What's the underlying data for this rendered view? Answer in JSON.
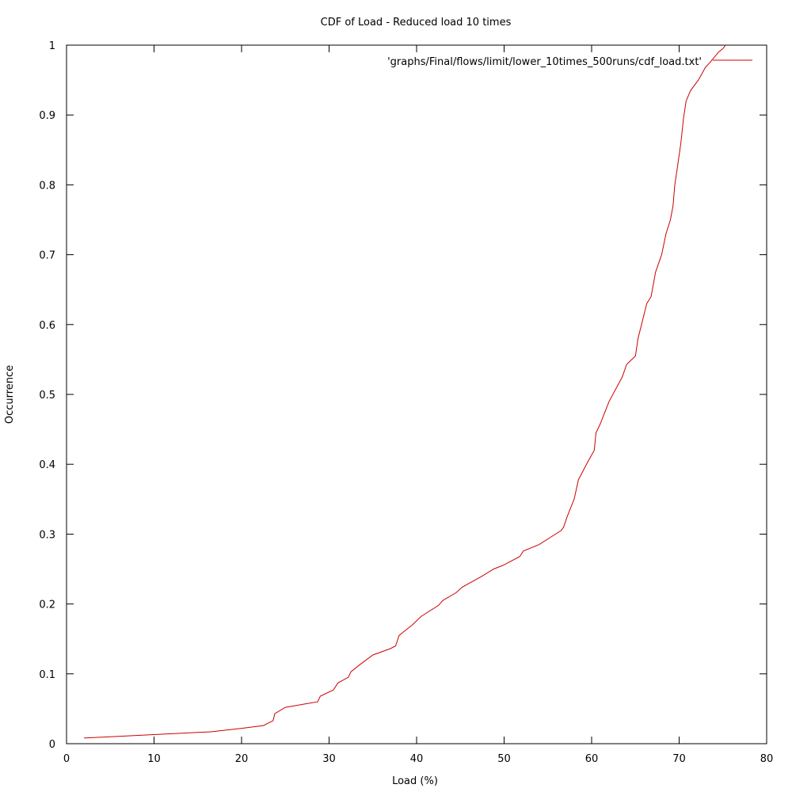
{
  "chart_data": {
    "type": "line",
    "title": "CDF of Load - Reduced load 10 times",
    "xlabel": "Load (%)",
    "ylabel": "Occurrence",
    "xlim": [
      0,
      80
    ],
    "ylim": [
      0,
      1
    ],
    "xticks": [
      "0",
      "10",
      "20",
      "30",
      "40",
      "50",
      "60",
      "70",
      "80"
    ],
    "yticks": [
      "0",
      "0.1",
      "0.2",
      "0.3",
      "0.4",
      "0.5",
      "0.6",
      "0.7",
      "0.8",
      "0.9",
      "1"
    ],
    "grid": false,
    "legend_position": "top-right",
    "series": [
      {
        "name": "'graphs/Final/flows/limit/lower_10times_500runs/cdf_load.txt'",
        "color": "#cc0000",
        "x": [
          2,
          5,
          10,
          16.5,
          20,
          22.5,
          23.6,
          23.8,
          25,
          28.7,
          29,
          30.5,
          31,
          32.2,
          32.5,
          33.5,
          35,
          37,
          37.6,
          38,
          39.5,
          40.5,
          42.5,
          43,
          44.5,
          45.2,
          47.5,
          48.8,
          50,
          51.8,
          52.2,
          54,
          55.5,
          56.5,
          56.8,
          57.2,
          58,
          58.5,
          59.5,
          60.3,
          60.5,
          61,
          62,
          63.5,
          64,
          65,
          65.3,
          66,
          66.3,
          66.8,
          67.3,
          68,
          68.5,
          69,
          69.3,
          69.5,
          69.8,
          70.2,
          70.5,
          70.8,
          71.3,
          72.2,
          73,
          73.5,
          74.5,
          75,
          75.3
        ],
        "y": [
          0.008,
          0.01,
          0.013,
          0.017,
          0.022,
          0.026,
          0.033,
          0.043,
          0.052,
          0.06,
          0.068,
          0.077,
          0.087,
          0.095,
          0.103,
          0.113,
          0.127,
          0.136,
          0.14,
          0.155,
          0.17,
          0.182,
          0.198,
          0.205,
          0.216,
          0.224,
          0.24,
          0.25,
          0.256,
          0.268,
          0.276,
          0.285,
          0.297,
          0.305,
          0.31,
          0.325,
          0.35,
          0.378,
          0.402,
          0.42,
          0.445,
          0.458,
          0.49,
          0.525,
          0.543,
          0.555,
          0.58,
          0.615,
          0.63,
          0.64,
          0.675,
          0.7,
          0.73,
          0.75,
          0.77,
          0.8,
          0.825,
          0.86,
          0.895,
          0.92,
          0.935,
          0.95,
          0.968,
          0.975,
          0.99,
          0.995,
          1.0
        ]
      }
    ]
  }
}
